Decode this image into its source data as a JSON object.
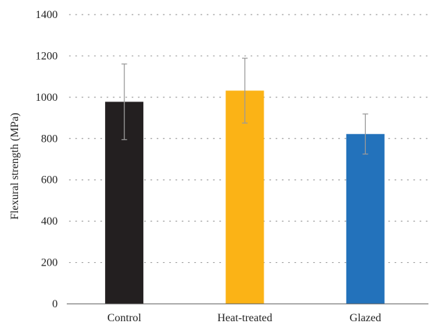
{
  "chart_data": {
    "type": "bar",
    "title": "",
    "xlabel": "",
    "ylabel": "Flexural strength (MPa)",
    "categories": [
      "Control",
      "Heat-treated",
      "Glazed"
    ],
    "values": [
      978,
      1032,
      822
    ],
    "error": [
      183,
      157,
      97
    ],
    "colors": [
      "#231f20",
      "#fbb316",
      "#2372bb"
    ],
    "ylim": [
      0,
      1400
    ],
    "yticks": [
      0,
      200,
      400,
      600,
      800,
      1000,
      1200,
      1400
    ],
    "ytick_labels": [
      "0",
      "200",
      "400",
      "600",
      "800",
      "1000",
      "1200",
      "1400"
    ],
    "grid": true,
    "grid_style": "dotted",
    "legend": "none"
  }
}
